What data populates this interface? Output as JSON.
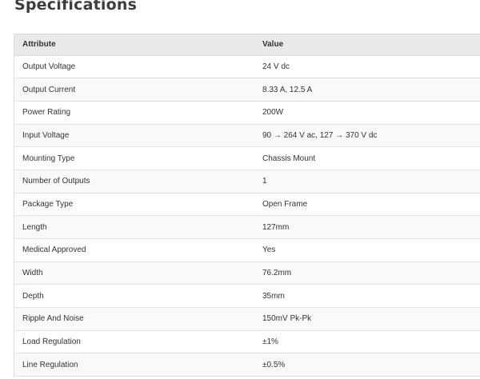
{
  "title": "Specifications",
  "table": {
    "headers": [
      "Attribute",
      "Value"
    ],
    "rows": [
      {
        "attribute": "Output Voltage",
        "value": "24 V dc"
      },
      {
        "attribute": "Output Current",
        "value": "8.33 A, 12.5 A"
      },
      {
        "attribute": "Power Rating",
        "value": "200W"
      },
      {
        "attribute": "Input Voltage",
        "value": "90 → 264 V ac, 127 → 370 V dc"
      },
      {
        "attribute": "Mounting Type",
        "value": "Chassis Mount"
      },
      {
        "attribute": "Number of Outputs",
        "value": "1"
      },
      {
        "attribute": "Package Type",
        "value": "Open Frame"
      },
      {
        "attribute": "Length",
        "value": "127mm"
      },
      {
        "attribute": "Medical Approved",
        "value": "Yes"
      },
      {
        "attribute": "Width",
        "value": "76.2mm"
      },
      {
        "attribute": "Depth",
        "value": "35mm"
      },
      {
        "attribute": "Ripple And Noise",
        "value": "150mV Pk-Pk"
      },
      {
        "attribute": "Load Regulation",
        "value": "±1%"
      },
      {
        "attribute": "Line Regulation",
        "value": "±0.5%"
      }
    ]
  }
}
